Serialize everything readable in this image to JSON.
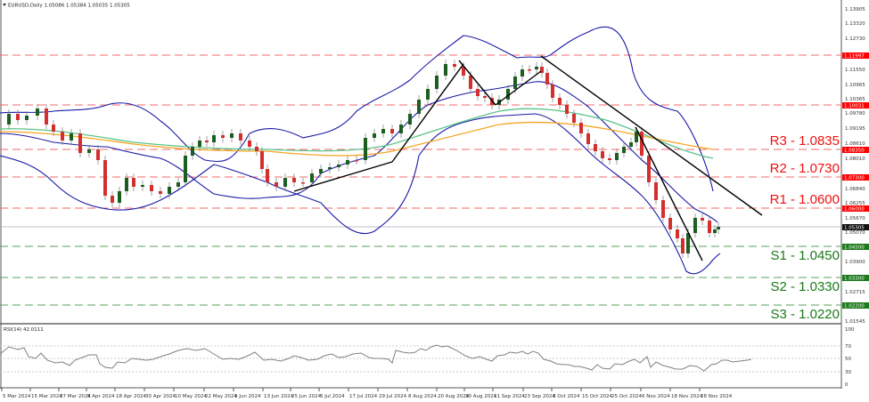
{
  "header": {
    "symbol": "EURUSD,Daily",
    "ohlc": "1.05086 1.05384 1.05035 1.05305",
    "title_full": "EURUSD,Daily  1.05086 1.05384 1.05035 1.05305"
  },
  "rsi_panel": {
    "label": "RSI(14) 42.0111",
    "levels": [
      100,
      70,
      50,
      30,
      0
    ]
  },
  "price_axis": {
    "ticks": [
      "1.13905",
      "1.13320",
      "1.12730",
      "1.12135",
      "1.11550",
      "1.10965",
      "1.10365",
      "1.09780",
      "1.09195",
      "1.08610",
      "1.08010",
      "1.07425",
      "1.06840",
      "1.06255",
      "1.05670",
      "1.05070",
      "1.03900",
      "1.02715",
      "1.01545"
    ],
    "current_price": "1.05305",
    "marked_levels": [
      {
        "value": "1.11997",
        "color": "#ff0000"
      },
      {
        "value": "1.10031",
        "color": "#ff0000"
      },
      {
        "value": "1.08350",
        "color": "#ff0000"
      },
      {
        "value": "1.07300",
        "color": "#ff0000"
      },
      {
        "value": "1.06000",
        "color": "#ff0000"
      },
      {
        "value": "1.04500",
        "color": "#1b7a1b"
      },
      {
        "value": "1.03300",
        "color": "#1b7a1b"
      },
      {
        "value": "1.02200",
        "color": "#1b7a1b"
      }
    ]
  },
  "date_axis": [
    "5 Mar 2024",
    "15 Mar 2024",
    "27 Mar 2024",
    "8 Apr 2024",
    "18 Apr 2024",
    "30 Apr 2024",
    "10 May 2024",
    "22 May 2024",
    "3 Jun 2024",
    "13 Jun 2024",
    "25 Jun 2024",
    "5 Jul 2024",
    "17 Jul 2024",
    "29 Jul 2024",
    "8 Aug 2024",
    "20 Aug 2024",
    "30 Aug 2024",
    "11 Sep 2024",
    "23 Sep 2024",
    "3 Oct 2024",
    "15 Oct 2024",
    "25 Oct 2024",
    "6 Nov 2024",
    "18 Nov 2024",
    "28 Nov 2024"
  ],
  "levels": {
    "r3": "R3 - 1.0835",
    "r2": "R2 - 1.0730",
    "r1": "R1 - 1.0600",
    "s1": "S1 - 1.0450",
    "s2": "S2 - 1.0330",
    "s3": "S3 - 1.0220"
  },
  "colors": {
    "resistance": "#ff0000",
    "support": "#1b7a1b",
    "bull_candle": "#1b5e20",
    "bear_candle": "#d32f2f",
    "bollinger": "#1a1aa6",
    "ma_green": "#5cc48a",
    "ma_orange": "#f5a623",
    "trendline": "#000000",
    "rsi_line": "#808080"
  },
  "chart_data": [
    {
      "type": "candlestick",
      "title": "EURUSD,Daily",
      "subtitle": "O 1.05086 H 1.05384 L 1.05035 C 1.05305",
      "xlabel": "",
      "ylabel": "",
      "ylim": [
        1.0125,
        1.142
      ],
      "x_ticks": [
        "5 Mar 2024",
        "15 Mar 2024",
        "27 Mar 2024",
        "8 Apr 2024",
        "18 Apr 2024",
        "30 Apr 2024",
        "10 May 2024",
        "22 May 2024",
        "3 Jun 2024",
        "13 Jun 2024",
        "25 Jun 2024",
        "5 Jul 2024",
        "17 Jul 2024",
        "29 Jul 2024",
        "8 Aug 2024",
        "20 Aug 2024",
        "30 Aug 2024",
        "11 Sep 2024",
        "23 Sep 2024",
        "3 Oct 2024",
        "15 Oct 2024",
        "25 Oct 2024",
        "6 Nov 2024",
        "18 Nov 2024",
        "28 Nov 2024"
      ],
      "series": [
        {
          "name": "Close (approx, sampled)",
          "x": [
            "5 Mar 2024",
            "15 Mar 2024",
            "27 Mar 2024",
            "8 Apr 2024",
            "18 Apr 2024",
            "30 Apr 2024",
            "10 May 2024",
            "22 May 2024",
            "3 Jun 2024",
            "13 Jun 2024",
            "25 Jun 2024",
            "5 Jul 2024",
            "17 Jul 2024",
            "29 Jul 2024",
            "8 Aug 2024",
            "20 Aug 2024",
            "30 Aug 2024",
            "11 Sep 2024",
            "23 Sep 2024",
            "3 Oct 2024",
            "15 Oct 2024",
            "25 Oct 2024",
            "6 Nov 2024",
            "18 Nov 2024",
            "28 Nov 2024"
          ],
          "values": [
            1.094,
            1.088,
            1.079,
            1.072,
            1.065,
            1.067,
            1.078,
            1.083,
            1.085,
            1.074,
            1.071,
            1.083,
            1.09,
            1.083,
            1.092,
            1.113,
            1.105,
            1.108,
            1.112,
            1.098,
            1.089,
            1.08,
            1.072,
            1.054,
            1.057
          ]
        }
      ],
      "horizontal_levels": [
        {
          "name": "R3",
          "value": 1.0835,
          "style": "dashed",
          "color": "#ff0000"
        },
        {
          "name": "R2",
          "value": 1.073,
          "style": "dashed",
          "color": "#ff0000"
        },
        {
          "name": "R1",
          "value": 1.06,
          "style": "dashed",
          "color": "#ff0000"
        },
        {
          "name": "S1",
          "value": 1.045,
          "style": "dashed",
          "color": "#1b7a1b"
        },
        {
          "name": "S2",
          "value": 1.033,
          "style": "dashed",
          "color": "#1b7a1b"
        },
        {
          "name": "S3",
          "value": 1.022,
          "style": "dashed",
          "color": "#1b7a1b"
        },
        {
          "name": "upper-1",
          "value": 1.11997,
          "style": "dashed",
          "color": "#ff0000"
        },
        {
          "name": "upper-2",
          "value": 1.10031,
          "style": "dashed",
          "color": "#ff0000"
        }
      ],
      "overlays": [
        "Bollinger Bands (blue)",
        "Moving average (green)",
        "Moving average (orange)",
        "Trendlines (black)"
      ],
      "current_price": 1.05305,
      "grid": false
    },
    {
      "type": "line",
      "title": "RSI(14) 42.0111",
      "ylim": [
        0,
        100
      ],
      "levels": [
        70,
        50,
        30
      ],
      "series": [
        {
          "name": "RSI(14)",
          "x": [
            "5 Mar 2024",
            "27 Mar 2024",
            "18 Apr 2024",
            "10 May 2024",
            "3 Jun 2024",
            "25 Jun 2024",
            "17 Jul 2024",
            "8 Aug 2024",
            "20 Aug 2024",
            "11 Sep 2024",
            "3 Oct 2024",
            "25 Oct 2024",
            "6 Nov 2024",
            "18 Nov 2024",
            "28 Nov 2024"
          ],
          "values": [
            58,
            48,
            33,
            55,
            62,
            38,
            52,
            55,
            72,
            55,
            40,
            30,
            50,
            30,
            42
          ]
        }
      ]
    }
  ]
}
